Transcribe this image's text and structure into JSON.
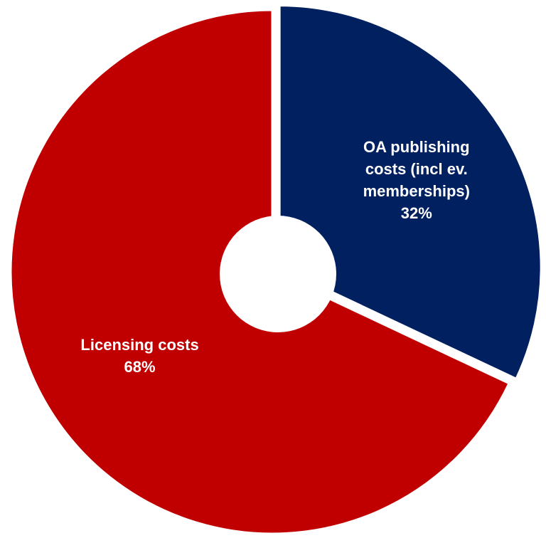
{
  "chart_data": {
    "type": "pie",
    "categories": [
      "OA publishing costs (incl ev. memberships)",
      "Licensing costs"
    ],
    "values": [
      32,
      68
    ],
    "value_labels": [
      "32%",
      "68%"
    ],
    "colors": [
      "#002060",
      "#c00000"
    ],
    "hole": true
  }
}
